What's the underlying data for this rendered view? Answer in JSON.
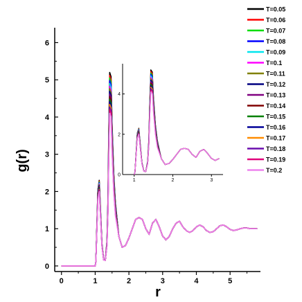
{
  "chart_data": {
    "type": "line",
    "xlabel": "r",
    "ylabel": "g(r)",
    "xlim": [
      -0.2,
      5.9
    ],
    "ylim": [
      -0.15,
      6.4
    ],
    "xticks": [
      0,
      1,
      2,
      3,
      4,
      5
    ],
    "yticks": [
      0,
      1,
      2,
      3,
      4,
      5,
      6
    ],
    "grid": false,
    "legend_position": "top-right",
    "series": [
      {
        "name": "T=0.05",
        "color": "#000000",
        "peak1": 2.3,
        "peak2": 5.2
      },
      {
        "name": "T=0.06",
        "color": "#ff0000",
        "peak1": 2.28,
        "peak2": 5.12
      },
      {
        "name": "T=0.07",
        "color": "#00dd00",
        "peak1": 2.26,
        "peak2": 5.05
      },
      {
        "name": "T=0.08",
        "color": "#0000ff",
        "peak1": 2.24,
        "peak2": 4.98
      },
      {
        "name": "T=0.09",
        "color": "#00e5ee",
        "peak1": 2.22,
        "peak2": 4.9
      },
      {
        "name": "T=0.1",
        "color": "#ff00ff",
        "peak1": 2.2,
        "peak2": 4.83
      },
      {
        "name": "T=0.11",
        "color": "#808000",
        "peak1": 2.18,
        "peak2": 4.76
      },
      {
        "name": "T=0.12",
        "color": "#000080",
        "peak1": 2.16,
        "peak2": 4.69
      },
      {
        "name": "T=0.13",
        "color": "#800080",
        "peak1": 2.14,
        "peak2": 4.62
      },
      {
        "name": "T=0.14",
        "color": "#800000",
        "peak1": 2.12,
        "peak2": 4.55
      },
      {
        "name": "T=0.15",
        "color": "#008000",
        "peak1": 2.1,
        "peak2": 4.48
      },
      {
        "name": "T=0.16",
        "color": "#000099",
        "peak1": 2.08,
        "peak2": 4.41
      },
      {
        "name": "T=0.17",
        "color": "#ff8c00",
        "peak1": 2.06,
        "peak2": 4.34
      },
      {
        "name": "T=0.18",
        "color": "#6a0dad",
        "peak1": 2.04,
        "peak2": 4.27
      },
      {
        "name": "T=0.19",
        "color": "#e0007a",
        "peak1": 2.02,
        "peak2": 4.2
      },
      {
        "name": "T=0.2",
        "color": "#ee82ee",
        "peak1": 2.0,
        "peak2": 4.1
      }
    ],
    "common_shape": {
      "r": [
        0,
        1.0,
        1.02,
        1.05,
        1.08,
        1.12,
        1.16,
        1.2,
        1.25,
        1.3,
        1.35,
        1.38,
        1.4,
        1.43,
        1.47,
        1.5,
        1.55,
        1.6,
        1.7,
        1.8,
        1.9,
        2.0,
        2.1,
        2.2,
        2.3,
        2.4,
        2.5,
        2.6,
        2.7,
        2.8,
        2.9,
        3.0,
        3.1,
        3.2,
        3.3,
        3.4,
        3.5,
        3.6,
        3.7,
        3.8,
        3.9,
        4.0,
        4.1,
        4.2,
        4.3,
        4.4,
        4.5,
        4.6,
        4.7,
        4.8,
        4.9,
        5.0,
        5.1,
        5.2,
        5.3,
        5.4,
        5.5,
        5.6,
        5.7,
        5.8
      ],
      "g": [
        0,
        0,
        0.1,
        0.9,
        1.7,
        1.9,
        1.2,
        0.5,
        0.15,
        0.15,
        0.6,
        1.6,
        3.0,
        4.6,
        4.5,
        3.4,
        2.2,
        1.5,
        0.8,
        0.5,
        0.55,
        0.75,
        1.0,
        1.25,
        1.3,
        1.25,
        1.0,
        0.85,
        1.15,
        1.25,
        1.05,
        0.8,
        0.7,
        0.8,
        1.0,
        1.15,
        1.2,
        1.05,
        0.95,
        0.9,
        0.95,
        1.05,
        1.1,
        1.05,
        0.95,
        0.9,
        0.92,
        1.0,
        1.08,
        1.1,
        1.05,
        0.98,
        0.95,
        0.97,
        1.0,
        1.02,
        1.02,
        1.0,
        1.0,
        1.0
      ]
    },
    "inset": {
      "xlim": [
        0.7,
        3.3
      ],
      "ylim": [
        0,
        5.5
      ],
      "xticks": [
        1,
        2,
        3
      ],
      "yticks": [
        0,
        2,
        4
      ]
    }
  }
}
